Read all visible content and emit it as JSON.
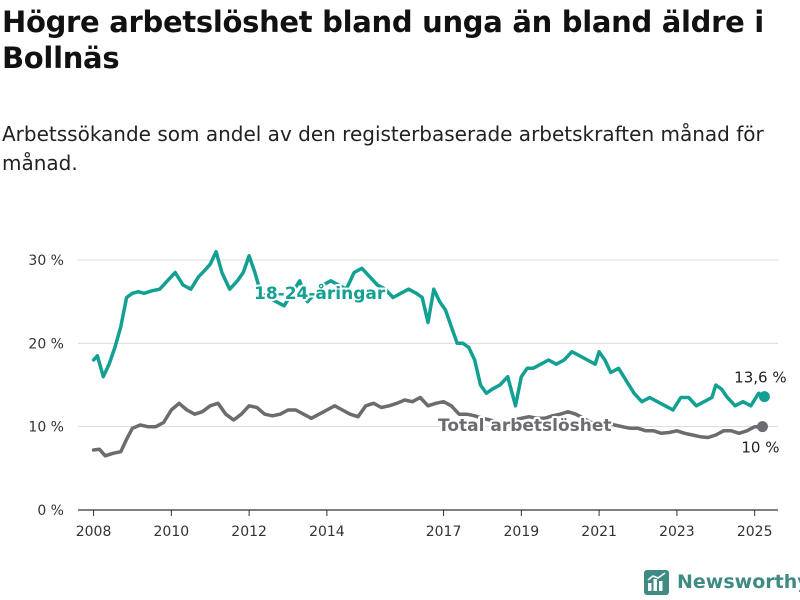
{
  "header": {
    "title": "Högre arbetslöshet bland unga än bland äldre i Bollnäs",
    "subtitle": "Arbetssökande som andel av den registerbaserade arbetskraften månad för månad."
  },
  "brand": {
    "name": "Newsworthy",
    "icon": "newsworthy-logo-icon",
    "color": "#3f8a83"
  },
  "chart_data": {
    "type": "line",
    "title": "Högre arbetslöshet bland unga än bland äldre i Bollnäs",
    "subtitle": "Arbetssökande som andel av den registerbaserade arbetskraften månad för månad.",
    "ylim": [
      0,
      30
    ],
    "yticks": [
      0,
      10,
      20,
      30
    ],
    "ytick_labels": [
      "0 %",
      "10 %",
      "20 %",
      "30 %"
    ],
    "xticks": [
      2008,
      2010,
      2012,
      2014,
      2017,
      2019,
      2021,
      2023,
      2025
    ],
    "xtick_labels": [
      "2008",
      "2010",
      "2012",
      "2014",
      "2017",
      "2019",
      "2021",
      "2023",
      "2025"
    ],
    "grid": "horizontal",
    "series": [
      {
        "name": "18-24-åringar",
        "color": "#12a092",
        "end_label": "13,6 %",
        "x": [
          2008.0,
          2008.1,
          2008.25,
          2008.4,
          2008.55,
          2008.7,
          2008.85,
          2009.0,
          2009.15,
          2009.3,
          2009.5,
          2009.7,
          2009.9,
          2010.1,
          2010.3,
          2010.5,
          2010.7,
          2010.85,
          2011.0,
          2011.15,
          2011.3,
          2011.5,
          2011.7,
          2011.85,
          2012.0,
          2012.15,
          2012.3,
          2012.5,
          2012.7,
          2012.9,
          2013.1,
          2013.3,
          2013.5,
          2013.7,
          2013.9,
          2014.1,
          2014.3,
          2014.5,
          2014.7,
          2014.9,
          2015.1,
          2015.3,
          2015.5,
          2015.7,
          2015.9,
          2016.1,
          2016.3,
          2016.45,
          2016.6,
          2016.75,
          2016.9,
          2017.05,
          2017.2,
          2017.35,
          2017.5,
          2017.65,
          2017.8,
          2017.95,
          2018.1,
          2018.25,
          2018.45,
          2018.65,
          2018.85,
          2019.0,
          2019.15,
          2019.3,
          2019.5,
          2019.7,
          2019.9,
          2020.1,
          2020.3,
          2020.5,
          2020.7,
          2020.9,
          2021.0,
          2021.15,
          2021.3,
          2021.5,
          2021.7,
          2021.9,
          2022.1,
          2022.3,
          2022.5,
          2022.7,
          2022.9,
          2023.1,
          2023.3,
          2023.5,
          2023.7,
          2023.9,
          2024.0,
          2024.15,
          2024.3,
          2024.5,
          2024.7,
          2024.9,
          2025.1,
          2025.25
        ],
        "y": [
          18.0,
          18.5,
          16.0,
          17.5,
          19.5,
          22.0,
          25.5,
          26.0,
          26.2,
          26.0,
          26.3,
          26.5,
          27.5,
          28.5,
          27.0,
          26.5,
          28.0,
          28.7,
          29.5,
          31.0,
          28.5,
          26.5,
          27.5,
          28.5,
          30.5,
          28.5,
          26.0,
          25.5,
          25.0,
          24.5,
          26.0,
          27.5,
          25.0,
          26.0,
          27.0,
          27.5,
          27.0,
          26.5,
          28.5,
          29.0,
          28.0,
          27.0,
          26.5,
          25.5,
          26.0,
          26.5,
          26.0,
          25.5,
          22.5,
          26.5,
          25.0,
          24.0,
          22.0,
          20.0,
          20.0,
          19.5,
          18.0,
          15.0,
          14.0,
          14.5,
          15.0,
          16.0,
          12.5,
          16.0,
          17.0,
          17.0,
          17.5,
          18.0,
          17.5,
          18.0,
          19.0,
          18.5,
          18.0,
          17.5,
          19.0,
          18.0,
          16.5,
          17.0,
          15.5,
          14.0,
          13.0,
          13.5,
          13.0,
          12.5,
          12.0,
          13.5,
          13.5,
          12.5,
          13.0,
          13.5,
          15.0,
          14.5,
          13.5,
          12.5,
          13.0,
          12.5,
          14.0,
          13.6
        ]
      },
      {
        "name": "Total arbetslöshet",
        "color": "#6b6b70",
        "end_label": "10 %",
        "x": [
          2008.0,
          2008.15,
          2008.3,
          2008.5,
          2008.7,
          2008.85,
          2009.0,
          2009.2,
          2009.4,
          2009.6,
          2009.8,
          2010.0,
          2010.2,
          2010.4,
          2010.6,
          2010.8,
          2011.0,
          2011.2,
          2011.4,
          2011.6,
          2011.8,
          2012.0,
          2012.2,
          2012.4,
          2012.6,
          2012.8,
          2013.0,
          2013.2,
          2013.4,
          2013.6,
          2013.8,
          2014.0,
          2014.2,
          2014.4,
          2014.6,
          2014.8,
          2015.0,
          2015.2,
          2015.4,
          2015.6,
          2015.8,
          2016.0,
          2016.2,
          2016.4,
          2016.6,
          2016.8,
          2017.0,
          2017.2,
          2017.4,
          2017.6,
          2017.8,
          2018.0,
          2018.2,
          2018.4,
          2018.6,
          2018.8,
          2019.0,
          2019.2,
          2019.4,
          2019.6,
          2019.8,
          2020.0,
          2020.2,
          2020.4,
          2020.6,
          2020.8,
          2021.0,
          2021.2,
          2021.4,
          2021.6,
          2021.8,
          2022.0,
          2022.2,
          2022.4,
          2022.6,
          2022.8,
          2023.0,
          2023.2,
          2023.4,
          2023.6,
          2023.8,
          2024.0,
          2024.2,
          2024.4,
          2024.6,
          2024.8,
          2025.0,
          2025.2
        ],
        "y": [
          7.2,
          7.3,
          6.5,
          6.8,
          7.0,
          8.5,
          9.8,
          10.2,
          10.0,
          10.0,
          10.5,
          12.0,
          12.8,
          12.0,
          11.5,
          11.8,
          12.5,
          12.8,
          11.5,
          10.8,
          11.5,
          12.5,
          12.3,
          11.5,
          11.3,
          11.5,
          12.0,
          12.0,
          11.5,
          11.0,
          11.5,
          12.0,
          12.5,
          12.0,
          11.5,
          11.2,
          12.5,
          12.8,
          12.3,
          12.5,
          12.8,
          13.2,
          13.0,
          13.5,
          12.5,
          12.8,
          13.0,
          12.5,
          11.5,
          11.5,
          11.3,
          11.0,
          10.8,
          10.5,
          10.5,
          10.8,
          11.0,
          11.2,
          11.0,
          11.0,
          11.3,
          11.5,
          11.8,
          11.5,
          11.0,
          10.5,
          10.3,
          10.5,
          10.2,
          10.0,
          9.8,
          9.8,
          9.5,
          9.5,
          9.2,
          9.3,
          9.5,
          9.2,
          9.0,
          8.8,
          8.7,
          9.0,
          9.5,
          9.5,
          9.2,
          9.5,
          10.0,
          10.0
        ]
      }
    ]
  }
}
